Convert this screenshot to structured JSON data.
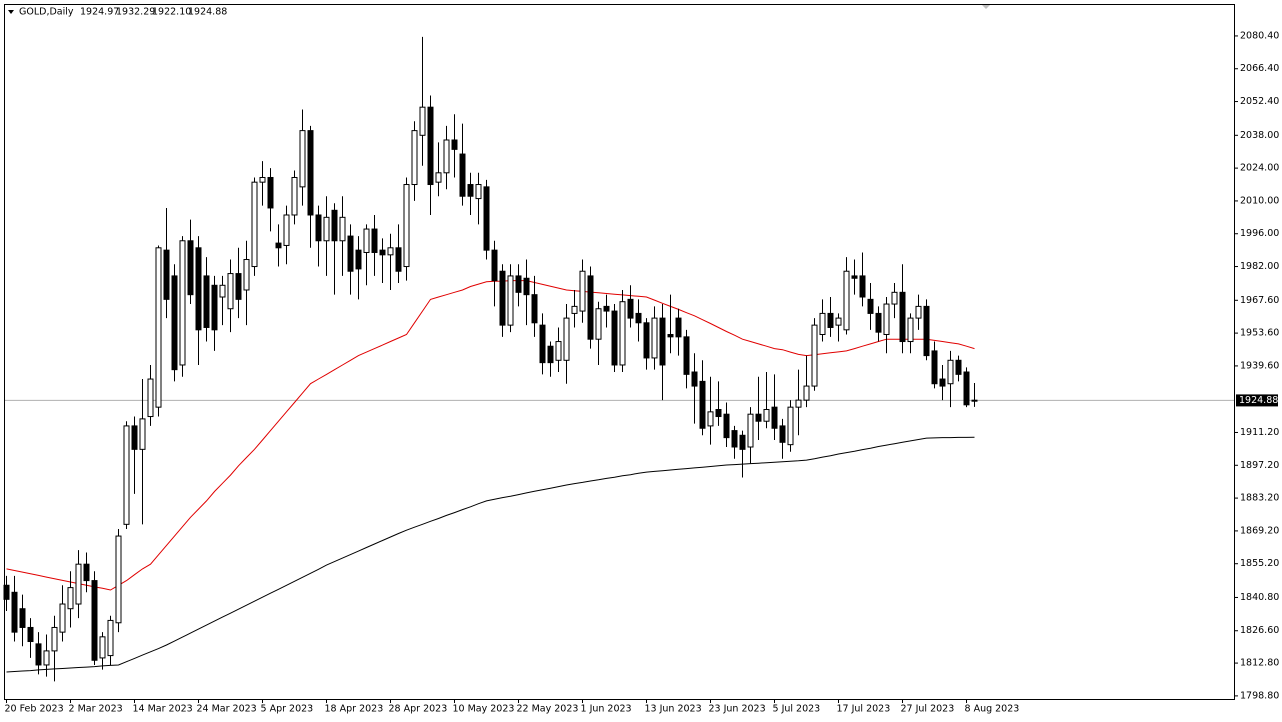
{
  "chart_data": {
    "type": "candlestick",
    "title": "GOLD,Daily",
    "header_values": [
      "1924.97",
      "1932.29",
      "1922.10",
      "1924.88"
    ],
    "categories": [
      "20 Feb 2023",
      null,
      null,
      null,
      null,
      null,
      null,
      null,
      "2 Mar 2023",
      null,
      null,
      null,
      null,
      null,
      null,
      null,
      "14 Mar 2023",
      null,
      null,
      null,
      null,
      null,
      null,
      null,
      "24 Mar 2023",
      null,
      null,
      null,
      null,
      null,
      null,
      null,
      "5 Apr 2023",
      null,
      null,
      null,
      null,
      null,
      null,
      null,
      "18 Apr 2023",
      null,
      null,
      null,
      null,
      null,
      null,
      null,
      "28 Apr 2023",
      null,
      null,
      null,
      null,
      null,
      null,
      null,
      "10 May 2023",
      null,
      null,
      null,
      null,
      null,
      null,
      null,
      "22 May 2023",
      null,
      null,
      null,
      null,
      null,
      null,
      null,
      "1 Jun 2023",
      null,
      null,
      null,
      null,
      null,
      null,
      null,
      "13 Jun 2023",
      null,
      null,
      null,
      null,
      null,
      null,
      null,
      "23 Jun 2023",
      null,
      null,
      null,
      null,
      null,
      null,
      null,
      "5 Jul 2023",
      null,
      null,
      null,
      null,
      null,
      null,
      null,
      "17 Jul 2023",
      null,
      null,
      null,
      null,
      null,
      null,
      null,
      "27 Jul 2023",
      null,
      null,
      null,
      null,
      null,
      null,
      null,
      "8 Aug 2023",
      null
    ],
    "open": [
      1846,
      1843,
      1836,
      1828,
      1821,
      1812,
      1818,
      1826,
      1836,
      1838,
      1855,
      1848,
      1815,
      1816,
      1830,
      1872,
      1914,
      1904,
      1918,
      1922,
      1989,
      1978,
      1940,
      1993,
      1990,
      1978,
      1974,
      1969,
      1964,
      1979,
      1972,
      1982,
      2018,
      2020,
      1992,
      1991,
      2004,
      2016,
      2040,
      2004,
      1993,
      2006,
      1993,
      1995,
      1989,
      1988,
      1998,
      1989,
      1987,
      1990,
      1982,
      2017,
      2038,
      2050,
      2018,
      2022,
      2036,
      2030,
      2017,
      2011,
      2016,
      1989,
      1980,
      1957,
      1978,
      1977,
      1970,
      1957,
      1948,
      1942,
      1942,
      1962,
      1963,
      1978,
      1951,
      1965,
      1963,
      1940,
      1968,
      1962,
      1958,
      1943,
      1960,
      1953,
      1960,
      1952,
      1937,
      1933,
      1914,
      1921,
      1919,
      1912,
      1910,
      1905,
      1919,
      1916,
      1922,
      1914,
      1906,
      1922,
      1925,
      1931,
      1953,
      1962,
      1957,
      1955,
      1978,
      1978,
      1968,
      1962,
      1953,
      1966,
      1971,
      1950,
      1960,
      1965,
      1946,
      1934,
      1932,
      1942,
      1937,
      1924.97
    ],
    "high": [
      1850,
      1850,
      1842,
      1832,
      1826,
      1825,
      1833,
      1846,
      1852,
      1861,
      1860,
      1852,
      1826,
      1833,
      1870,
      1916,
      1918,
      1934,
      1940,
      1991,
      2007,
      1983,
      1995,
      2002,
      1995,
      1986,
      1978,
      1978,
      1985,
      1990,
      1993,
      2020,
      2027,
      2024,
      2000,
      2008,
      2023,
      2049,
      2042,
      2008,
      2012,
      2009,
      2012,
      2000,
      1995,
      2000,
      2004,
      1994,
      1996,
      2000,
      2020,
      2044,
      2080,
      2055,
      2035,
      2042,
      2047,
      2043,
      2022,
      2022,
      2019,
      1993,
      1983,
      1983,
      1983,
      1985,
      1978,
      1962,
      1950,
      1956,
      1966,
      1972,
      1985,
      1982,
      1967,
      1970,
      1966,
      1972,
      1974,
      1968,
      1960,
      1965,
      1966,
      1970,
      1964,
      1955,
      1945,
      1942,
      1935,
      1933,
      1924,
      1914,
      1912,
      1922,
      1935,
      1937,
      1936,
      1917,
      1925,
      1938,
      1944,
      1960,
      1968,
      1969,
      1962,
      1986,
      1985,
      1988,
      1975,
      1965,
      1969,
      1975,
      1983,
      1962,
      1970,
      1968,
      1950,
      1940,
      1946,
      1944,
      1939,
      1932.29
    ],
    "low": [
      1835,
      1822,
      1820,
      1815,
      1808,
      1807,
      1805,
      1822,
      1828,
      1832,
      1843,
      1812,
      1810,
      1812,
      1826,
      1870,
      1885,
      1872,
      1914,
      1918,
      1960,
      1933,
      1935,
      1966,
      1940,
      1950,
      1946,
      1957,
      1954,
      1960,
      1957,
      1978,
      2008,
      1997,
      1982,
      1983,
      2000,
      2008,
      1990,
      1982,
      1978,
      1970,
      1978,
      1970,
      1968,
      1974,
      1978,
      1975,
      1972,
      1975,
      1976,
      2010,
      2025,
      2004,
      2012,
      2015,
      2020,
      2008,
      2004,
      2000,
      1985,
      1965,
      1952,
      1954,
      1965,
      1957,
      1952,
      1936,
      1935,
      1937,
      1932,
      1956,
      1958,
      1947,
      1940,
      1956,
      1937,
      1937,
      1956,
      1950,
      1938,
      1938,
      1925,
      1945,
      1944,
      1930,
      1915,
      1910,
      1906,
      1914,
      1905,
      1900,
      1892,
      1898,
      1908,
      1913,
      1908,
      1900,
      1903,
      1910,
      1922,
      1929,
      1950,
      1952,
      1950,
      1953,
      1970,
      1965,
      1955,
      1950,
      1945,
      1960,
      1945,
      1945,
      1955,
      1942,
      1930,
      1925,
      1922,
      1933,
      1922,
      1922.1
    ],
    "close": [
      1840,
      1826,
      1828,
      1822,
      1812,
      1818,
      1828,
      1838,
      1845,
      1855,
      1848,
      1814,
      1824,
      1831,
      1867,
      1914,
      1904,
      1917,
      1934,
      1990,
      1968,
      1938,
      1993,
      1970,
      1955,
      1956,
      1955,
      1974,
      1979,
      1968,
      1985,
      2018,
      2020,
      2007,
      1990,
      2004,
      2020,
      2040,
      2004,
      1993,
      2003,
      1993,
      2003,
      1980,
      1981,
      1998,
      1988,
      1987,
      1990,
      1980,
      2017,
      2040,
      2050,
      2017,
      2022,
      2036,
      2032,
      2012,
      2012,
      2017,
      1989,
      1976,
      1957,
      1978,
      1971,
      1970,
      1958,
      1941,
      1941,
      1950,
      1960,
      1965,
      1980,
      1951,
      1964,
      1963,
      1940,
      1967,
      1960,
      1958,
      1943,
      1960,
      1940,
      1952,
      1952,
      1936,
      1931,
      1913,
      1920,
      1918,
      1909,
      1905,
      1904,
      1919,
      1916,
      1921,
      1913,
      1907,
      1922,
      1925,
      1931,
      1957,
      1962,
      1956,
      1960,
      1980,
      1977,
      1969,
      1962,
      1954,
      1966,
      1971,
      1950,
      1960,
      1965,
      1944,
      1932,
      1931,
      1942,
      1936,
      1923,
      1924.88
    ],
    "up_color": "#ffffff",
    "down_color": "#000000",
    "series": [
      {
        "color": "#e00000",
        "values": [
          1853,
          1852.3,
          1851.6,
          1850.9,
          1850.2,
          1849.5,
          1848.8,
          1848.1,
          1847.4,
          1846.7,
          1846,
          1845.3,
          1844.7,
          1844,
          1846,
          1848,
          1850.5,
          1853,
          1855,
          1859,
          1863,
          1867,
          1871,
          1875,
          1878.5,
          1882,
          1886,
          1889.5,
          1893,
          1897,
          1900.5,
          1904,
          1908,
          1912,
          1916,
          1920,
          1924,
          1928,
          1932,
          1934,
          1936,
          1938,
          1940,
          1942,
          1944,
          1945.5,
          1947,
          1948.5,
          1950,
          1951.5,
          1953,
          1958,
          1963,
          1968,
          1969,
          1970,
          1971,
          1972,
          1973.5,
          1974.5,
          1975.5,
          1975.7,
          1975.8,
          1976,
          1976,
          1976,
          1975.2,
          1974.4,
          1973.6,
          1972.8,
          1972,
          1971.7,
          1971.4,
          1971.1,
          1970.8,
          1970.5,
          1970.2,
          1969.9,
          1969.6,
          1969.3,
          1969,
          1967.7,
          1966.3,
          1965,
          1963.7,
          1962.3,
          1961,
          1959.3,
          1957.7,
          1956,
          1954.3,
          1952.7,
          1951,
          1950,
          1949,
          1948,
          1947,
          1946.5,
          1945.5,
          1944.5,
          1944,
          1944.4,
          1944.8,
          1945.2,
          1945.6,
          1946,
          1947,
          1948,
          1949,
          1950,
          1951,
          1951,
          1951,
          1951,
          1951,
          1951,
          1950.5,
          1950,
          1949.5,
          1949,
          1948,
          1947
        ]
      },
      {
        "color": "#000000",
        "values": [
          1809,
          1809.2,
          1809.4,
          1809.6,
          1809.9,
          1810.1,
          1810.3,
          1810.5,
          1810.7,
          1810.9,
          1811.1,
          1811.3,
          1811.6,
          1811.8,
          1812,
          1813.4,
          1814.8,
          1816.2,
          1817.6,
          1819,
          1820.5,
          1822.2,
          1823.9,
          1825.6,
          1827.3,
          1829,
          1830.7,
          1832.4,
          1834.1,
          1835.8,
          1837.5,
          1839.2,
          1840.9,
          1842.6,
          1844.3,
          1846,
          1847.7,
          1849.4,
          1851.1,
          1852.8,
          1854.6,
          1856.1,
          1857.6,
          1859.1,
          1860.6,
          1862.1,
          1863.6,
          1865.1,
          1866.6,
          1868.1,
          1869.5,
          1870.8,
          1872,
          1873.3,
          1874.5,
          1875.8,
          1877,
          1878.3,
          1879.5,
          1880.8,
          1882,
          1882.7,
          1883.4,
          1884,
          1884.7,
          1885.4,
          1886.1,
          1886.8,
          1887.4,
          1888.1,
          1888.8,
          1889.4,
          1889.9,
          1890.5,
          1891,
          1891.6,
          1892.1,
          1892.7,
          1893.2,
          1893.8,
          1894.3,
          1894.6,
          1894.9,
          1895.2,
          1895.5,
          1895.8,
          1896.1,
          1896.4,
          1896.7,
          1897,
          1897.3,
          1897.5,
          1897.7,
          1897.9,
          1898.1,
          1898.3,
          1898.5,
          1898.7,
          1898.9,
          1899.1,
          1899.4,
          1900,
          1900.7,
          1901.3,
          1902,
          1902.6,
          1903.2,
          1903.9,
          1904.5,
          1905.2,
          1905.8,
          1906.4,
          1907,
          1907.6,
          1908.2,
          1908.8,
          1908.9,
          1909,
          1909,
          1909.1,
          1909.1,
          1909.2
        ]
      }
    ],
    "current_price": 1924.88,
    "ylim": [
      1797.9,
      2093.6
    ],
    "yticks": [
      {
        "value": 1798.8,
        "label": "1798.80"
      },
      {
        "value": 1812.8,
        "label": "1812.80"
      },
      {
        "value": 1826.6,
        "label": "1826.60"
      },
      {
        "value": 1840.8,
        "label": "1840.80"
      },
      {
        "value": 1855.2,
        "label": "1855.20"
      },
      {
        "value": 1869.2,
        "label": "1869.20"
      },
      {
        "value": 1883.2,
        "label": "1883.20"
      },
      {
        "value": 1897.2,
        "label": "1897.20"
      },
      {
        "value": 1911.2,
        "label": "1911.20"
      },
      {
        "value": 1939.6,
        "label": "1939.60"
      },
      {
        "value": 1953.6,
        "label": "1953.60"
      },
      {
        "value": 1967.6,
        "label": "1967.60"
      },
      {
        "value": 1982,
        "label": "1982.00"
      },
      {
        "value": 1996,
        "label": "1996.00"
      },
      {
        "value": 2010,
        "label": "2010.00"
      },
      {
        "value": 2024,
        "label": "2024.00"
      },
      {
        "value": 2038,
        "label": "2038.00"
      },
      {
        "value": 2052.4,
        "label": "2052.40"
      },
      {
        "value": 2066.4,
        "label": "2066.40"
      },
      {
        "value": 2080.4,
        "label": "2080.40"
      }
    ],
    "grid": false
  }
}
